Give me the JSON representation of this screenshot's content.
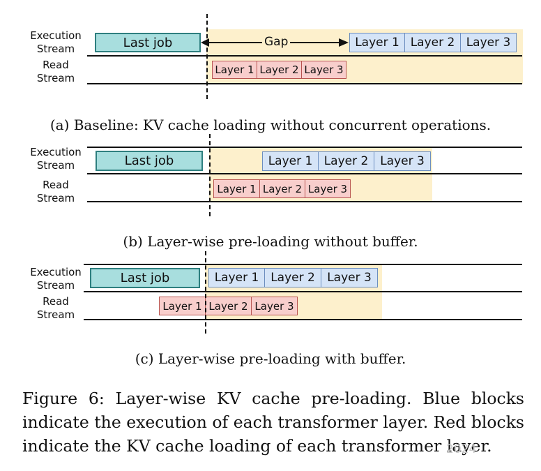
{
  "stream_labels": {
    "execution": "Execution Stream",
    "read": "Read Stream"
  },
  "blocks": {
    "last_job": "Last job",
    "layer_1": "Layer 1",
    "layer_2": "Layer 2",
    "layer_3": "Layer 3"
  },
  "gap_label": "Gap",
  "subcaptions": {
    "a": "(a) Baseline: KV cache loading without concurrent operations.",
    "b": "(b) Layer-wise pre-loading without buffer.",
    "c": "(c) Layer-wise pre-loading with buffer."
  },
  "caption": "Figure 6: Layer-wise KV cache pre-loading. Blue blocks indicate the execution of each transformer layer. Red blocks indicate the KV cache loading of each transformer layer.",
  "watermark": "2024",
  "colors": {
    "execution_block": "#d5e4f7",
    "loading_block": "#f8cecc",
    "last_job_block": "#a8dede",
    "shade": "#fdf0cc"
  }
}
